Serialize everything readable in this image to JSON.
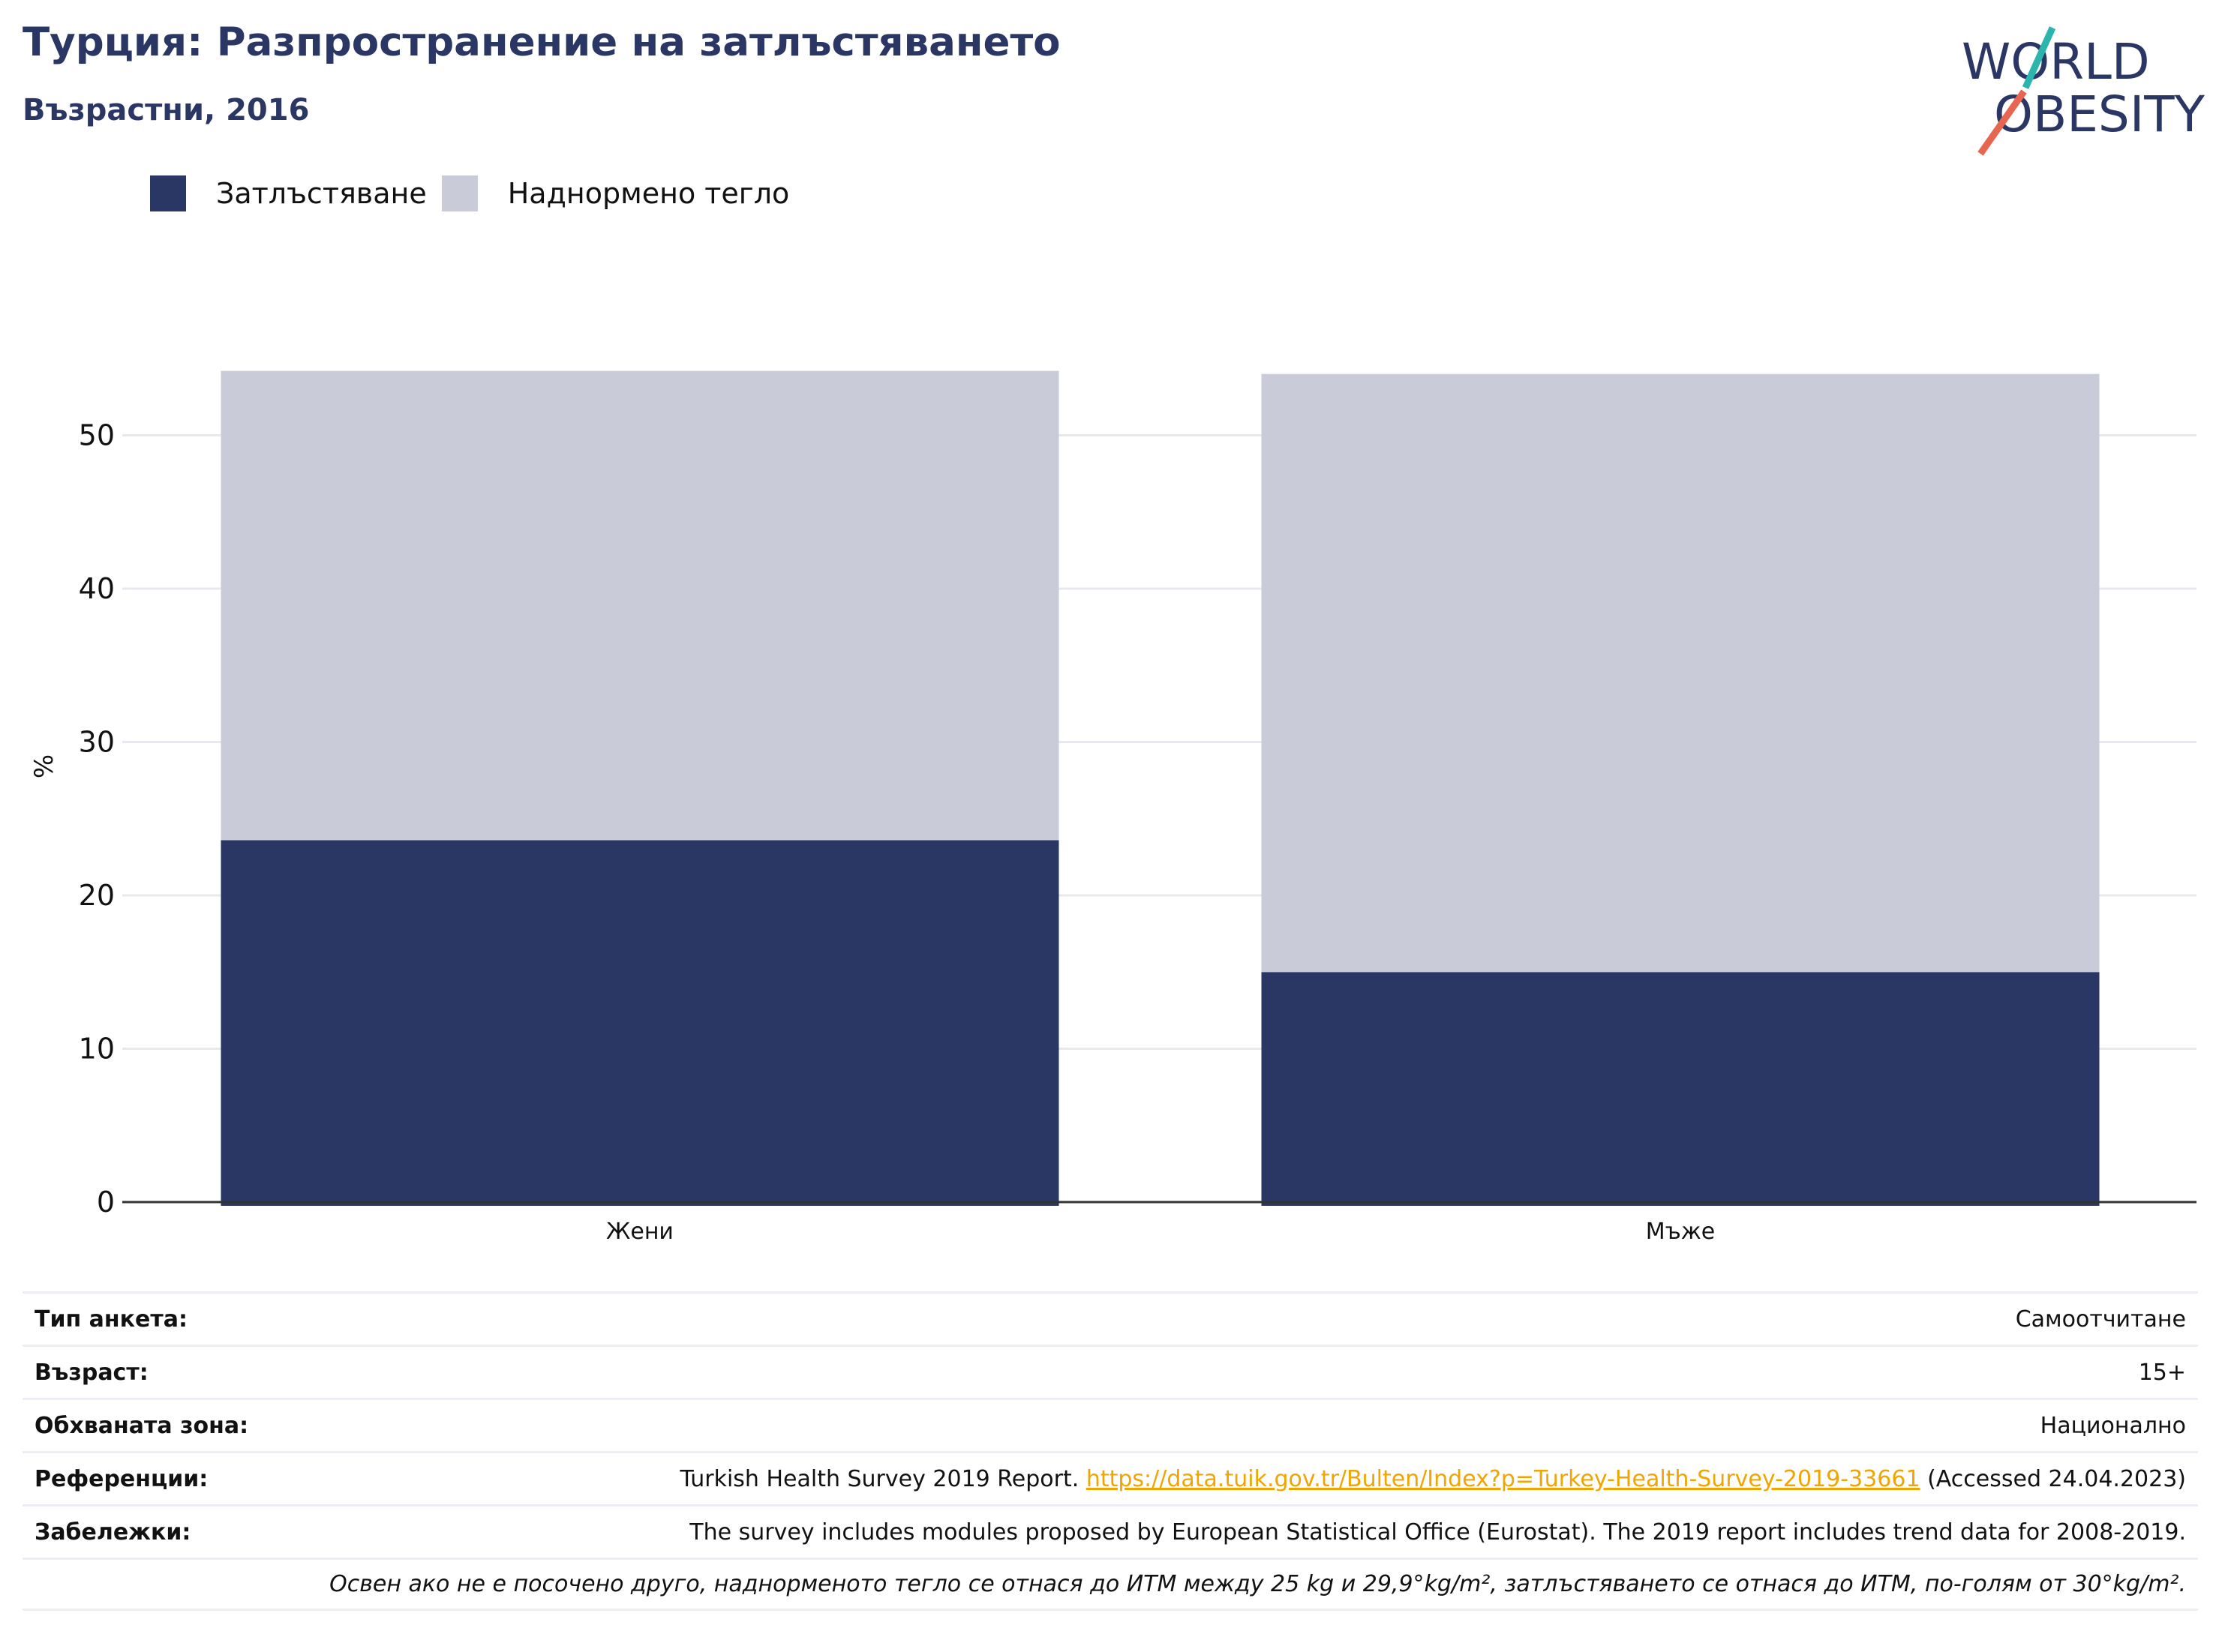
{
  "header": {
    "title": "Турция: Разпространение на затлъстяването",
    "subtitle": "Възрастни, 2016"
  },
  "logo": {
    "line1": "WORLD",
    "line2": "OBESITY"
  },
  "colors": {
    "obesity": "#2a3664",
    "overweight": "#c9ccd8",
    "title": "#2a3664",
    "link": "#f0a500"
  },
  "chart_data": {
    "type": "bar",
    "stacked": true,
    "categories": [
      "Жени",
      "Мъже"
    ],
    "series": [
      {
        "name": "Затлъстяване",
        "values": [
          23.6,
          15.0
        ]
      },
      {
        "name": "Наднормено тегло",
        "values": [
          30.6,
          39.0
        ]
      }
    ],
    "ylabel": "%",
    "ylim": [
      0,
      56
    ],
    "yticks": [
      "0",
      "10",
      "20",
      "30",
      "40",
      "50"
    ],
    "legend": "top-left",
    "grid": true
  },
  "info": {
    "survey_label": "Тип анкета:",
    "survey_value": "Самоотчитане",
    "age_label": "Възраст:",
    "age_value": "15+",
    "area_label": "Обхваната зона:",
    "area_value": "Национално",
    "ref_label": "Референции:",
    "ref_text": "Turkish Health Survey 2019 Report.",
    "ref_link": "https://data.tuik.gov.tr/Bulten/Index?p=Turkey-Health-Survey-2019-33661",
    "ref_accessed": "(Accessed 24.04.2023)",
    "notes_label": "Забележки:",
    "notes_value": "The survey includes modules proposed by European Statistical Office (Eurostat). The 2019 report includes trend data for 2008-2019.",
    "footnote": "Освен ако не е посочено друго, наднорменото тегло се отнася до ИТМ между 25 kg и 29,9°kg/m², затлъстяването се отнася до ИТМ, по-голям от 30°kg/m²."
  }
}
